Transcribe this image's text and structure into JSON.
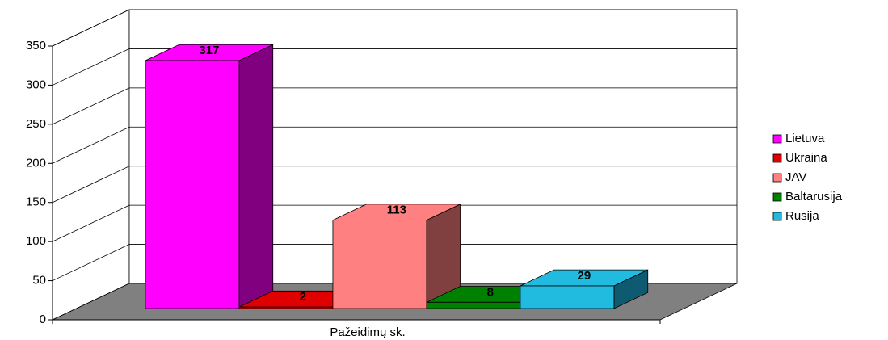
{
  "chart_data": {
    "type": "bar3d",
    "x_label": "Pažeidimų sk.",
    "ylim": [
      0,
      350
    ],
    "yticks": [
      0,
      50,
      100,
      150,
      200,
      250,
      300,
      350
    ],
    "grid": true,
    "legend": "right",
    "series": [
      {
        "name": "Lietuva",
        "color": "#FF00FF",
        "side": "#800080",
        "values": [
          317
        ]
      },
      {
        "name": "Ukraina",
        "color": "#E00000",
        "side": "#800000",
        "values": [
          2
        ]
      },
      {
        "name": "JAV",
        "color": "#FF8080",
        "side": "#804040",
        "values": [
          113
        ]
      },
      {
        "name": "Baltarusija",
        "color": "#008000",
        "side": "#004000",
        "values": [
          8
        ]
      },
      {
        "name": "Rusija",
        "color": "#22BBE0",
        "side": "#0E5A70",
        "values": [
          29
        ]
      }
    ]
  }
}
